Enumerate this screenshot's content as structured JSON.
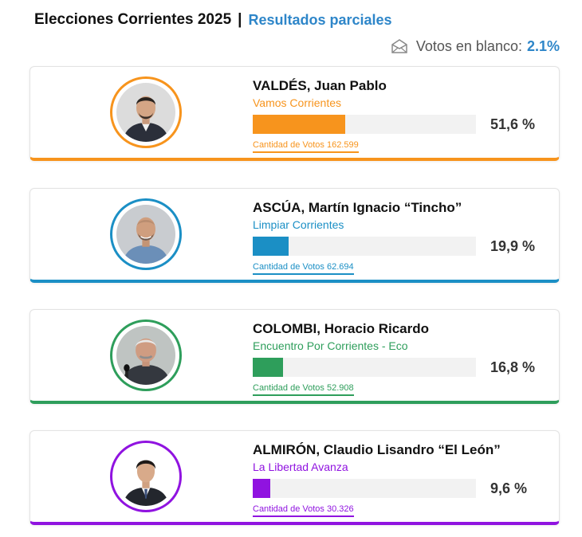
{
  "header": {
    "title": "Elecciones Corrientes 2025",
    "separator": "|",
    "subtitle": "Resultados parciales"
  },
  "blank_votes": {
    "icon": "envelope-icon",
    "label": "Votos en blanco:",
    "value": "2.1%"
  },
  "candidates": [
    {
      "name": "VALDÉS, Juan Pablo",
      "party": "Vamos Corrientes",
      "percent_label": "51,6 %",
      "percent": 51.6,
      "votes_label": "Cantidad de Votos 162.599",
      "color": "#f7941d"
    },
    {
      "name": "ASCÚA, Martín Ignacio “Tincho”",
      "party": "Limpiar Corrientes",
      "percent_label": "19,9 %",
      "percent": 19.9,
      "votes_label": "Cantidad de Votos 62.694",
      "color": "#1b8fc5"
    },
    {
      "name": "COLOMBI, Horacio Ricardo",
      "party": "Encuentro Por Corrientes - Eco",
      "percent_label": "16,8 %",
      "percent": 16.8,
      "votes_label": "Cantidad de Votos 52.908",
      "color": "#2e9e5b"
    },
    {
      "name": "ALMIRÓN, Claudio Lisandro “El León”",
      "party": "La Libertad Avanza",
      "percent_label": "9,6 %",
      "percent": 9.6,
      "votes_label": "Cantidad de Votos 30.326",
      "color": "#9013e0"
    }
  ]
}
